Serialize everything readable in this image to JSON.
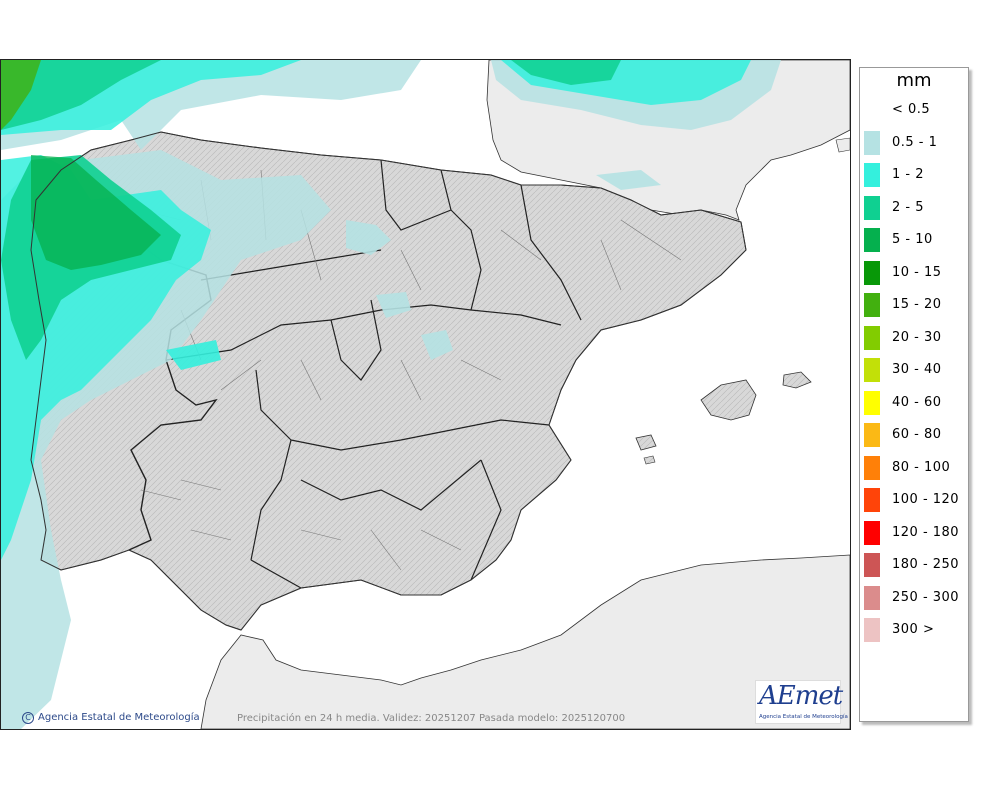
{
  "legend": {
    "unit": "mm",
    "items": [
      {
        "label": "< 0.5",
        "color": ""
      },
      {
        "label": "0.5 - 1",
        "color": "#b5e2e3"
      },
      {
        "label": "1 - 2",
        "color": "#34f0dd"
      },
      {
        "label": "2 - 5",
        "color": "#0fd091"
      },
      {
        "label": "5 - 10",
        "color": "#05b04e"
      },
      {
        "label": "10 - 15",
        "color": "#089808"
      },
      {
        "label": "15 - 20",
        "color": "#42b00f"
      },
      {
        "label": "20 - 30",
        "color": "#82cc00"
      },
      {
        "label": "30 - 40",
        "color": "#c2e008"
      },
      {
        "label": "40 - 60",
        "color": "#ffff00"
      },
      {
        "label": "60 - 80",
        "color": "#fbb915"
      },
      {
        "label": "80 - 100",
        "color": "#ff8008"
      },
      {
        "label": "100 - 120",
        "color": "#ff4409"
      },
      {
        "label": "120 - 180",
        "color": "#ff0000"
      },
      {
        "label": "180 - 250",
        "color": "#cd5555"
      },
      {
        "label": "250 - 300",
        "color": "#db8c8c"
      },
      {
        "label": "300 >",
        "color": "#edc3c3"
      }
    ]
  },
  "footer": {
    "copyright": "Agencia Estatal de Meteorología",
    "caption": "Precipitación en 24 h media. Validez: 20251207 Pasada modelo: 2025120700"
  },
  "logo": {
    "mark": "AEmet",
    "subtitle": "Agencia Estatal de Meteorología"
  },
  "colors": {
    "land": "#d6d6d6",
    "foreign_land": "#ececec",
    "sea": "#ffffff",
    "border": "#333333"
  }
}
